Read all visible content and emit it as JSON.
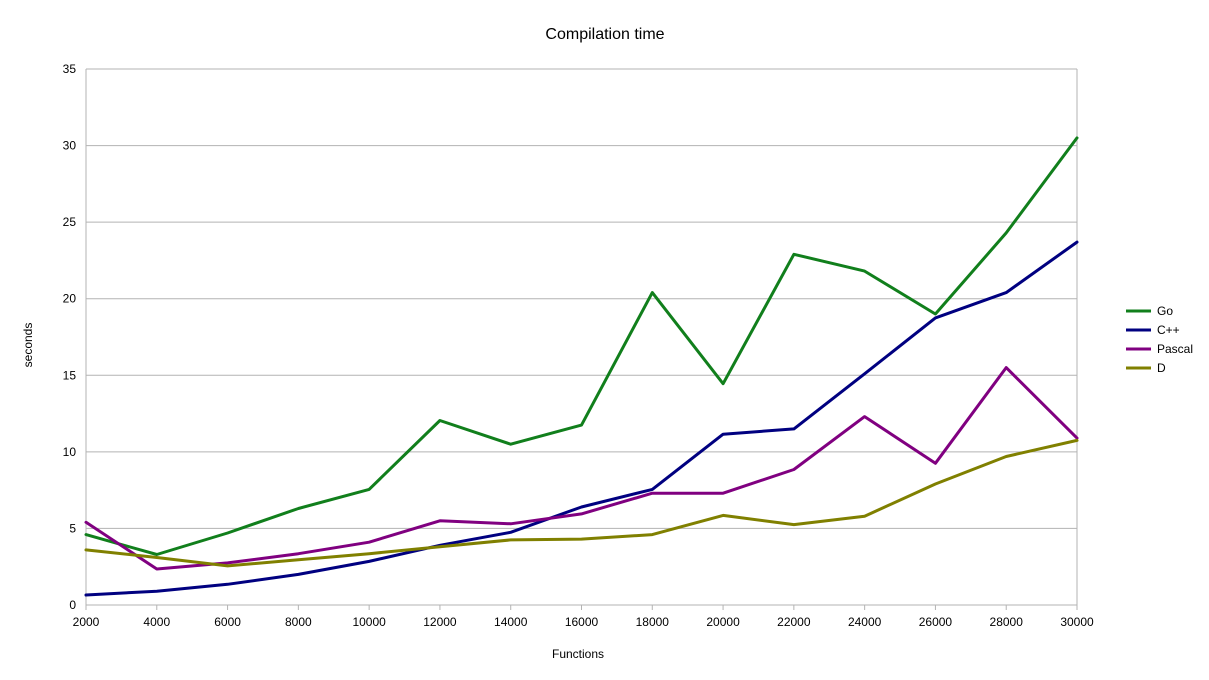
{
  "chart_data": {
    "type": "line",
    "title": "Compilation time",
    "xlabel": "Functions",
    "ylabel": "seconds",
    "x": [
      2000,
      4000,
      6000,
      8000,
      10000,
      12000,
      14000,
      16000,
      18000,
      20000,
      22000,
      24000,
      26000,
      28000,
      30000
    ],
    "xlim": [
      2000,
      30000
    ],
    "ylim": [
      0,
      35
    ],
    "yticks": [
      0,
      5,
      10,
      15,
      20,
      25,
      30,
      35
    ],
    "grid": "horizontal",
    "legend_position": "right",
    "series": [
      {
        "name": "Go",
        "color": "#117f1c",
        "values": [
          4.6,
          3.3,
          4.7,
          6.3,
          7.55,
          12.05,
          10.5,
          11.75,
          20.4,
          14.45,
          22.9,
          21.8,
          19.0,
          24.3,
          30.5
        ]
      },
      {
        "name": "C++",
        "color": "#000080",
        "values": [
          0.65,
          0.9,
          1.35,
          2.0,
          2.85,
          3.9,
          4.75,
          6.4,
          7.55,
          11.15,
          11.5,
          15.1,
          18.75,
          20.4,
          23.7
        ]
      },
      {
        "name": "Pascal",
        "color": "#800080",
        "values": [
          5.4,
          2.35,
          2.75,
          3.35,
          4.1,
          5.5,
          5.3,
          5.95,
          7.3,
          7.3,
          8.85,
          12.3,
          9.25,
          15.5,
          10.9
        ]
      },
      {
        "name": "D",
        "color": "#808000",
        "values": [
          3.6,
          3.1,
          2.55,
          2.95,
          3.35,
          3.8,
          4.25,
          4.3,
          4.6,
          5.85,
          5.25,
          5.8,
          7.9,
          9.7,
          10.75
        ]
      }
    ]
  }
}
